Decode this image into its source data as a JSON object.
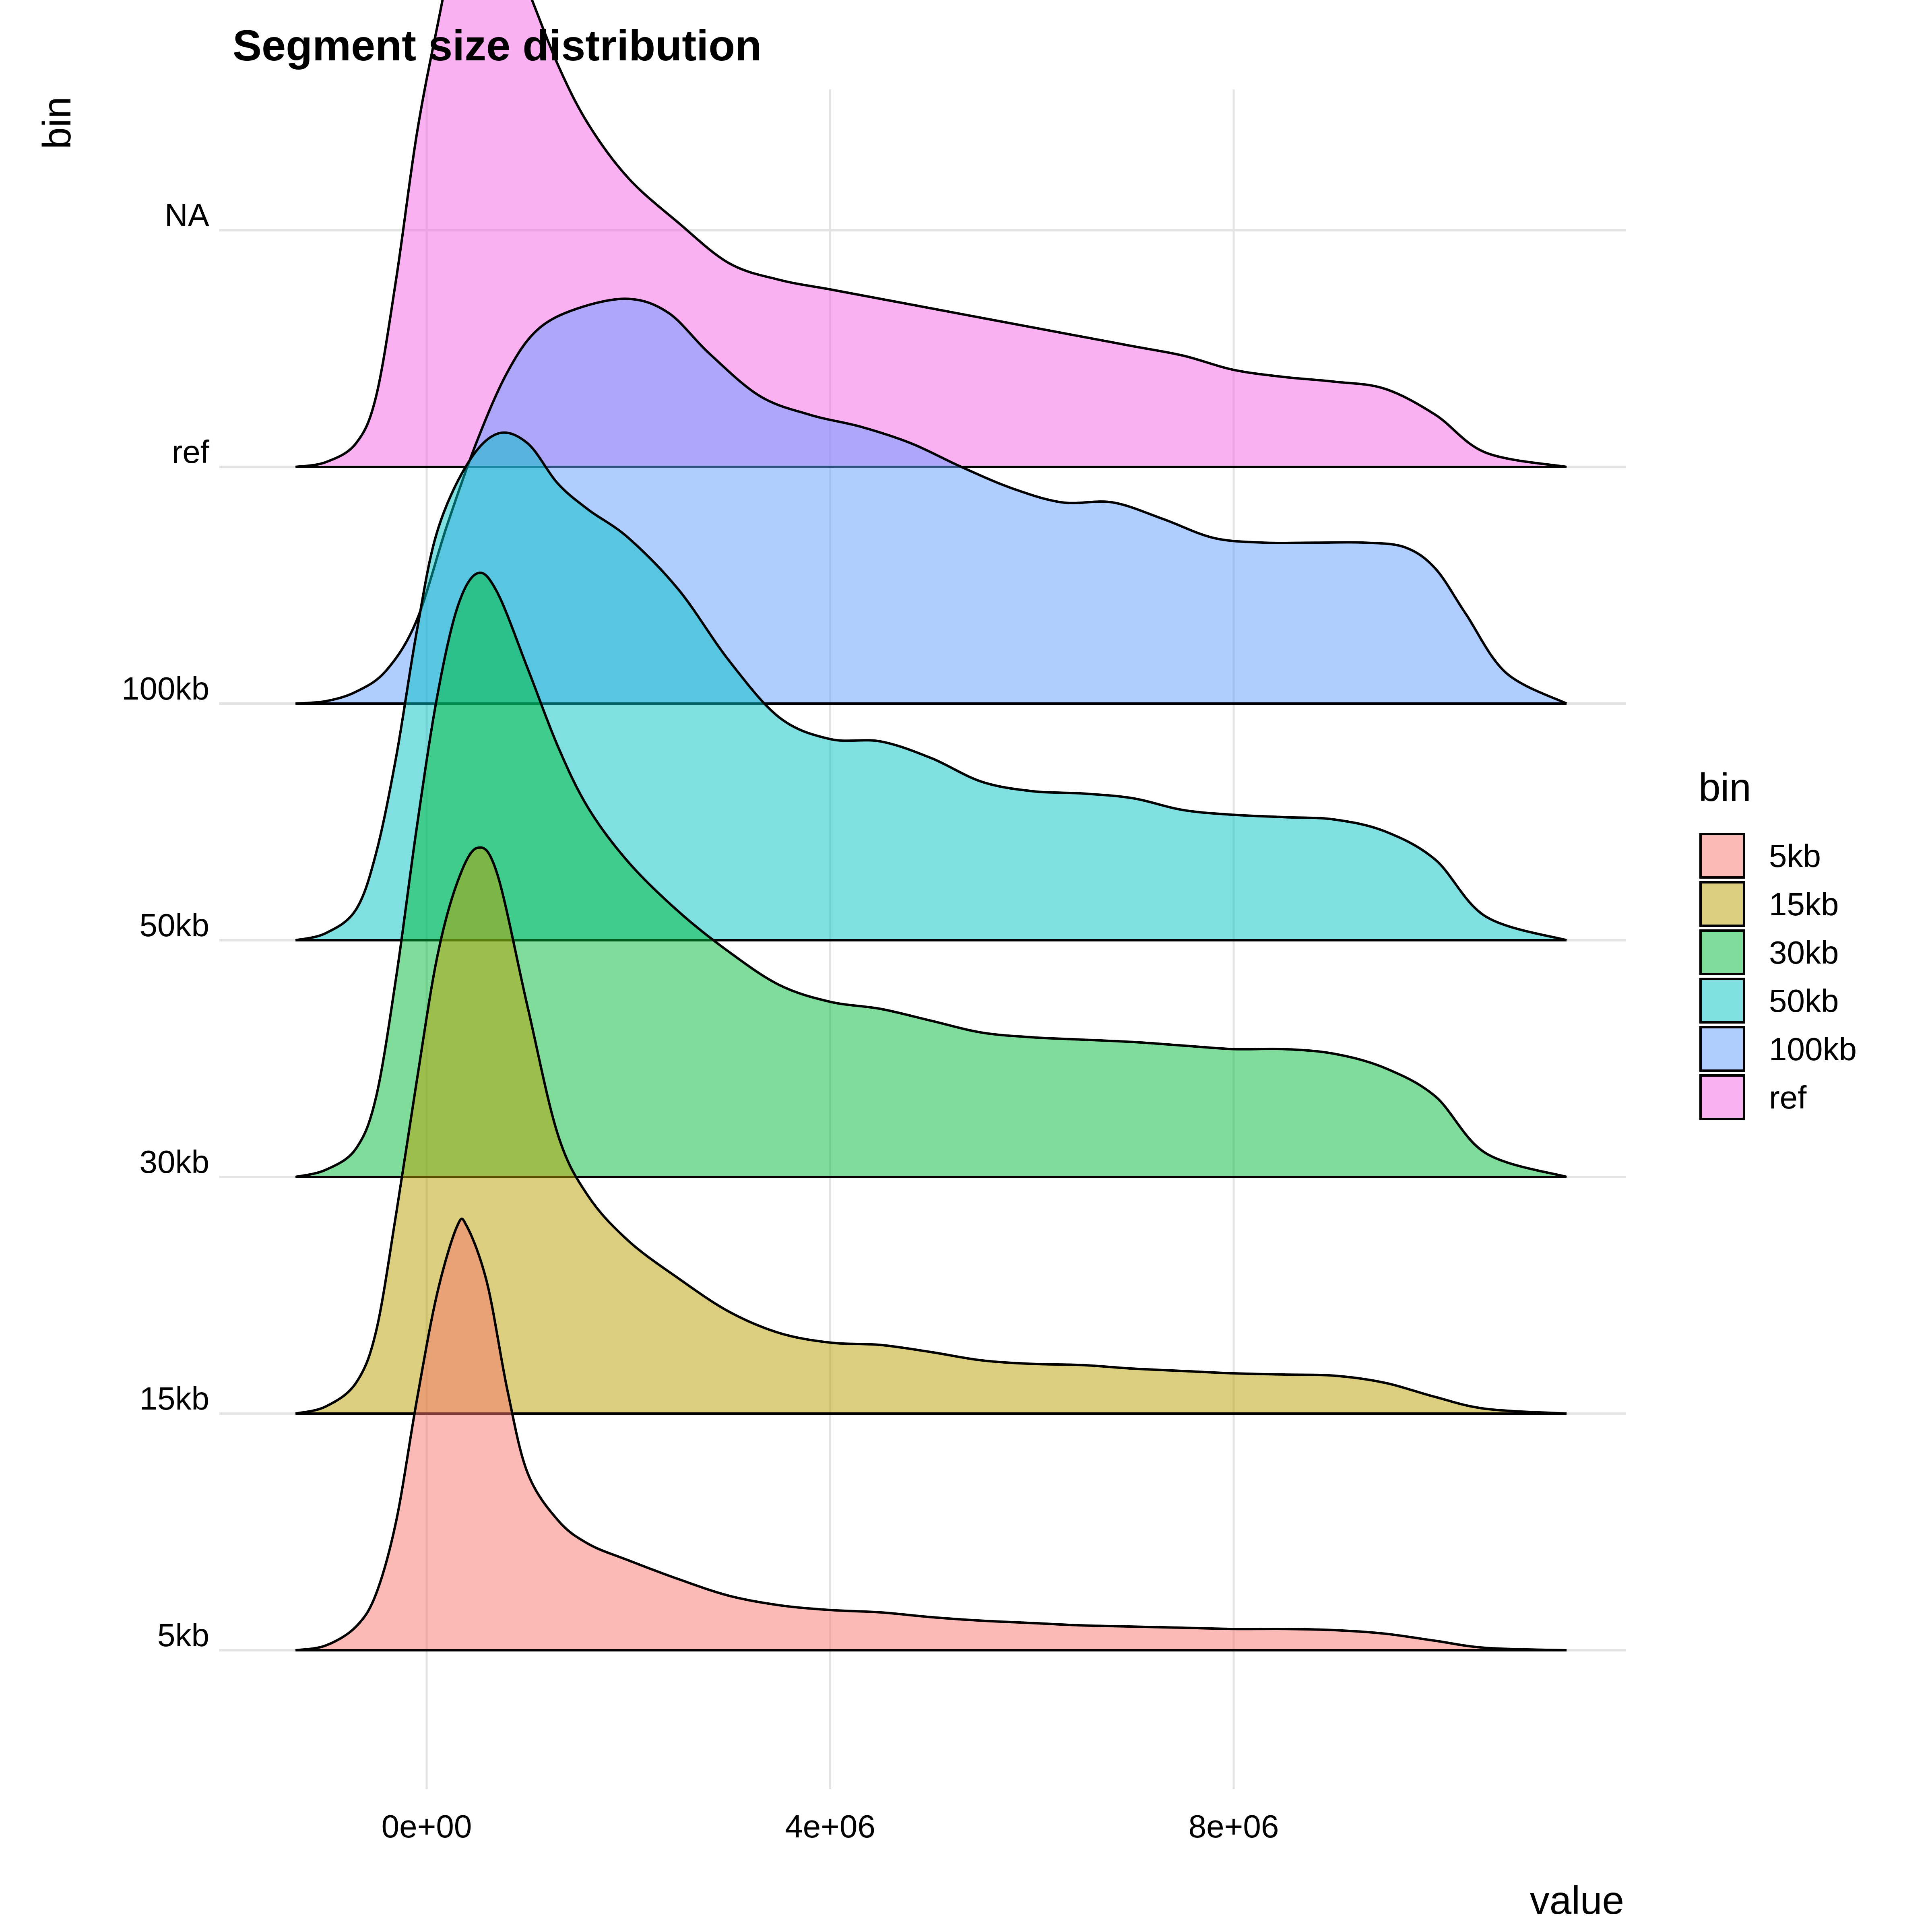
{
  "chart_data": {
    "type": "ridgeline",
    "title": "Segment size distribution",
    "xlabel": "value",
    "ylabel": "bin",
    "xlim": [
      -1300000,
      11300000
    ],
    "x_ticks": [
      {
        "value": 0,
        "label": "0e+00"
      },
      {
        "value": 4000000,
        "label": "4e+06"
      },
      {
        "value": 8000000,
        "label": "8e+06"
      }
    ],
    "y_tick_labels": [
      "5kb",
      "15kb",
      "30kb",
      "50kb",
      "100kb",
      "ref",
      "NA"
    ],
    "grid": true,
    "legend": {
      "title": "bin",
      "position": "right",
      "entries": [
        "5kb",
        "15kb",
        "30kb",
        "50kb",
        "100kb",
        "ref"
      ]
    },
    "series": [
      {
        "name": "5kb",
        "color": "#F8766D",
        "baseline_level": 0,
        "points": [
          [
            -1300000,
            0
          ],
          [
            -1000000,
            0.02
          ],
          [
            -700000,
            0.1
          ],
          [
            -500000,
            0.24
          ],
          [
            -300000,
            0.55
          ],
          [
            -100000,
            1.05
          ],
          [
            100000,
            1.5
          ],
          [
            300000,
            1.79
          ],
          [
            400000,
            1.79
          ],
          [
            600000,
            1.55
          ],
          [
            800000,
            1.1
          ],
          [
            1000000,
            0.75
          ],
          [
            1300000,
            0.55
          ],
          [
            1600000,
            0.45
          ],
          [
            2000000,
            0.38
          ],
          [
            2500000,
            0.3
          ],
          [
            3000000,
            0.23
          ],
          [
            3500000,
            0.19
          ],
          [
            4000000,
            0.17
          ],
          [
            4500000,
            0.16
          ],
          [
            5000000,
            0.14
          ],
          [
            5500000,
            0.125
          ],
          [
            6000000,
            0.115
          ],
          [
            6500000,
            0.105
          ],
          [
            7000000,
            0.1
          ],
          [
            7500000,
            0.095
          ],
          [
            8000000,
            0.09
          ],
          [
            8500000,
            0.09
          ],
          [
            9000000,
            0.085
          ],
          [
            9500000,
            0.07
          ],
          [
            10000000,
            0.04
          ],
          [
            10500000,
            0.01
          ],
          [
            11300000,
            0
          ]
        ]
      },
      {
        "name": "15kb",
        "color": "#B79F00",
        "baseline_level": 1,
        "points": [
          [
            -1300000,
            0
          ],
          [
            -1000000,
            0.03
          ],
          [
            -700000,
            0.13
          ],
          [
            -500000,
            0.35
          ],
          [
            -300000,
            0.85
          ],
          [
            -100000,
            1.4
          ],
          [
            100000,
            1.92
          ],
          [
            300000,
            2.24
          ],
          [
            500000,
            2.39
          ],
          [
            700000,
            2.28
          ],
          [
            1000000,
            1.72
          ],
          [
            1300000,
            1.18
          ],
          [
            1600000,
            0.92
          ],
          [
            2000000,
            0.73
          ],
          [
            2500000,
            0.57
          ],
          [
            3000000,
            0.43
          ],
          [
            3500000,
            0.34
          ],
          [
            4000000,
            0.3
          ],
          [
            4500000,
            0.29
          ],
          [
            5000000,
            0.26
          ],
          [
            5500000,
            0.225
          ],
          [
            6000000,
            0.21
          ],
          [
            6500000,
            0.205
          ],
          [
            7000000,
            0.19
          ],
          [
            7500000,
            0.18
          ],
          [
            8000000,
            0.17
          ],
          [
            8500000,
            0.165
          ],
          [
            9000000,
            0.16
          ],
          [
            9500000,
            0.13
          ],
          [
            10000000,
            0.07
          ],
          [
            10500000,
            0.02
          ],
          [
            11300000,
            0
          ]
        ]
      },
      {
        "name": "30kb",
        "color": "#00BA38",
        "baseline_level": 2,
        "points": [
          [
            -1300000,
            0
          ],
          [
            -1000000,
            0.03
          ],
          [
            -700000,
            0.12
          ],
          [
            -500000,
            0.34
          ],
          [
            -300000,
            0.85
          ],
          [
            -100000,
            1.47
          ],
          [
            100000,
            2.02
          ],
          [
            300000,
            2.4
          ],
          [
            500000,
            2.55
          ],
          [
            700000,
            2.47
          ],
          [
            1000000,
            2.15
          ],
          [
            1300000,
            1.82
          ],
          [
            1600000,
            1.56
          ],
          [
            2000000,
            1.33
          ],
          [
            2500000,
            1.12
          ],
          [
            3000000,
            0.95
          ],
          [
            3500000,
            0.81
          ],
          [
            4000000,
            0.74
          ],
          [
            4500000,
            0.71
          ],
          [
            5000000,
            0.66
          ],
          [
            5500000,
            0.61
          ],
          [
            6000000,
            0.59
          ],
          [
            6500000,
            0.58
          ],
          [
            7000000,
            0.57
          ],
          [
            7500000,
            0.555
          ],
          [
            8000000,
            0.54
          ],
          [
            8500000,
            0.54
          ],
          [
            9000000,
            0.52
          ],
          [
            9500000,
            0.46
          ],
          [
            10000000,
            0.34
          ],
          [
            10500000,
            0.1
          ],
          [
            11300000,
            0
          ]
        ]
      },
      {
        "name": "50kb",
        "color": "#00BFC4",
        "baseline_level": 3,
        "points": [
          [
            -1300000,
            0
          ],
          [
            -1000000,
            0.03
          ],
          [
            -700000,
            0.13
          ],
          [
            -500000,
            0.37
          ],
          [
            -300000,
            0.78
          ],
          [
            -100000,
            1.3
          ],
          [
            100000,
            1.72
          ],
          [
            400000,
            2.01
          ],
          [
            700000,
            2.14
          ],
          [
            1000000,
            2.1
          ],
          [
            1300000,
            1.93
          ],
          [
            1600000,
            1.82
          ],
          [
            2000000,
            1.7
          ],
          [
            2500000,
            1.48
          ],
          [
            3000000,
            1.18
          ],
          [
            3500000,
            0.94
          ],
          [
            4000000,
            0.85
          ],
          [
            4500000,
            0.84
          ],
          [
            5000000,
            0.77
          ],
          [
            5500000,
            0.67
          ],
          [
            6000000,
            0.63
          ],
          [
            6500000,
            0.62
          ],
          [
            7000000,
            0.6
          ],
          [
            7500000,
            0.55
          ],
          [
            8000000,
            0.53
          ],
          [
            8500000,
            0.52
          ],
          [
            9000000,
            0.51
          ],
          [
            9500000,
            0.46
          ],
          [
            10000000,
            0.34
          ],
          [
            10500000,
            0.1
          ],
          [
            11300000,
            0
          ]
        ]
      },
      {
        "name": "100kb",
        "color": "#619CFF",
        "baseline_level": 4,
        "points": [
          [
            -1300000,
            0
          ],
          [
            -1000000,
            0.01
          ],
          [
            -700000,
            0.05
          ],
          [
            -400000,
            0.14
          ],
          [
            -100000,
            0.35
          ],
          [
            200000,
            0.75
          ],
          [
            500000,
            1.11
          ],
          [
            800000,
            1.4
          ],
          [
            1100000,
            1.58
          ],
          [
            1500000,
            1.67
          ],
          [
            2000000,
            1.71
          ],
          [
            2400000,
            1.65
          ],
          [
            2800000,
            1.48
          ],
          [
            3300000,
            1.3
          ],
          [
            3800000,
            1.22
          ],
          [
            4300000,
            1.17
          ],
          [
            4800000,
            1.1
          ],
          [
            5300000,
            1.0
          ],
          [
            5800000,
            0.91
          ],
          [
            6300000,
            0.85
          ],
          [
            6800000,
            0.85
          ],
          [
            7300000,
            0.78
          ],
          [
            7800000,
            0.7
          ],
          [
            8300000,
            0.68
          ],
          [
            8800000,
            0.68
          ],
          [
            9300000,
            0.68
          ],
          [
            9700000,
            0.66
          ],
          [
            10000000,
            0.57
          ],
          [
            10300000,
            0.38
          ],
          [
            10700000,
            0.13
          ],
          [
            11300000,
            0
          ]
        ]
      },
      {
        "name": "ref",
        "color": "#F564E3",
        "baseline_level": 5,
        "points": [
          [
            -1300000,
            0
          ],
          [
            -1000000,
            0.02
          ],
          [
            -700000,
            0.1
          ],
          [
            -500000,
            0.3
          ],
          [
            -300000,
            0.8
          ],
          [
            -100000,
            1.4
          ],
          [
            100000,
            1.85
          ],
          [
            300000,
            2.24
          ],
          [
            500000,
            2.41
          ],
          [
            700000,
            2.32
          ],
          [
            1000000,
            2.02
          ],
          [
            1300000,
            1.7
          ],
          [
            1600000,
            1.45
          ],
          [
            2000000,
            1.22
          ],
          [
            2500000,
            1.03
          ],
          [
            3000000,
            0.86
          ],
          [
            3500000,
            0.79
          ],
          [
            4000000,
            0.75
          ],
          [
            4500000,
            0.71
          ],
          [
            5000000,
            0.67
          ],
          [
            5500000,
            0.63
          ],
          [
            6000000,
            0.59
          ],
          [
            6500000,
            0.55
          ],
          [
            7000000,
            0.51
          ],
          [
            7500000,
            0.47
          ],
          [
            8000000,
            0.41
          ],
          [
            8500000,
            0.38
          ],
          [
            9000000,
            0.36
          ],
          [
            9500000,
            0.33
          ],
          [
            10000000,
            0.22
          ],
          [
            10500000,
            0.06
          ],
          [
            11300000,
            0
          ]
        ]
      }
    ]
  }
}
